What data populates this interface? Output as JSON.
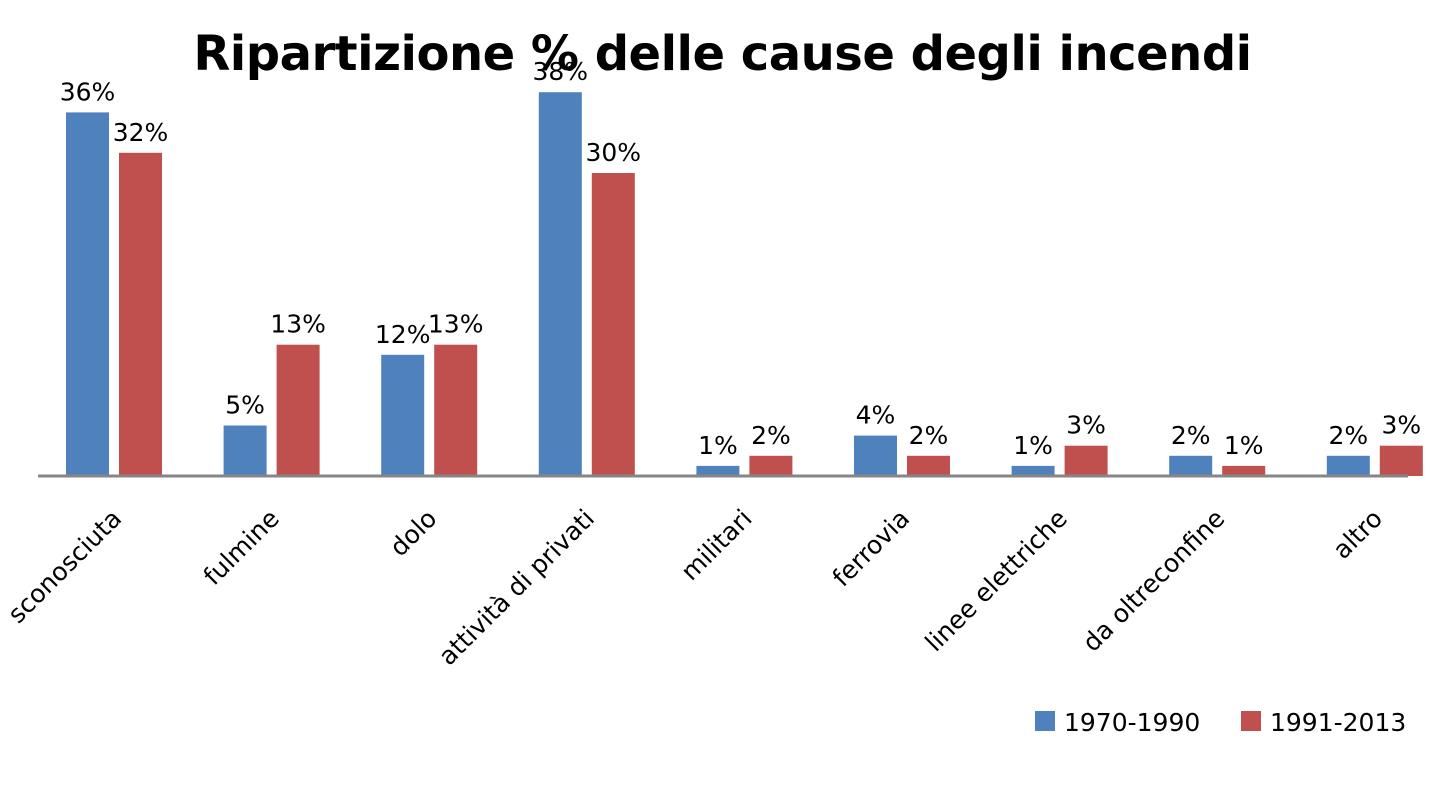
{
  "chart_data": {
    "type": "bar",
    "title": "Ripartizione % delle cause degli incendi",
    "xlabel": "",
    "ylabel": "",
    "ylim": [
      0,
      40
    ],
    "grid": false,
    "legend_position": "bottom-right",
    "categories": [
      "sconosciuta",
      "fulmine",
      "dolo",
      "attività di privati",
      "militari",
      "ferrovia",
      "linee elettriche",
      "da oltreconfine",
      "altro"
    ],
    "series": [
      {
        "name": "1970-1990",
        "color": "#4f81bd",
        "values": [
          36,
          5,
          12,
          38,
          1,
          4,
          1,
          2,
          2
        ],
        "labels": [
          "36%",
          "5%",
          "12%",
          "38%",
          "1%",
          "4%",
          "1%",
          "2%",
          "2%"
        ]
      },
      {
        "name": "1991-2013",
        "color": "#c0504d",
        "values": [
          32,
          13,
          13,
          30,
          2,
          2,
          3,
          1,
          3
        ],
        "labels": [
          "32%",
          "13%",
          "13%",
          "30%",
          "2%",
          "2%",
          "3%",
          "1%",
          "3%"
        ]
      }
    ]
  }
}
